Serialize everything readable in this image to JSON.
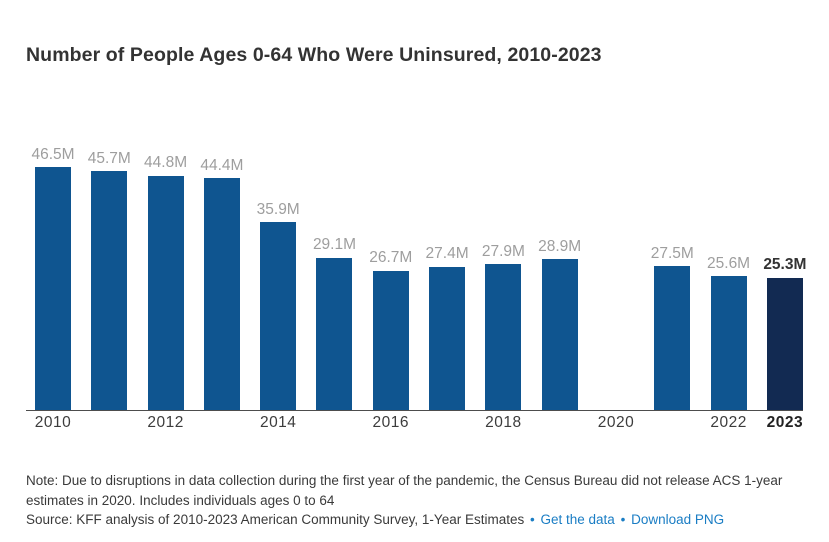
{
  "header": {
    "title": "Number of People Ages 0-64 Who Were Uninsured, 2010-2023"
  },
  "chart_data": {
    "type": "bar",
    "title": "Number of People Ages 0-64 Who Were Uninsured, 2010-2023",
    "xlabel": "",
    "ylabel": "",
    "unit": "millions of people",
    "x": [
      "2010",
      "2011",
      "2012",
      "2013",
      "2014",
      "2015",
      "2016",
      "2017",
      "2018",
      "2019",
      "2020",
      "2021",
      "2022",
      "2023"
    ],
    "values": [
      46.5,
      45.7,
      44.8,
      44.4,
      35.9,
      29.1,
      26.7,
      27.4,
      27.9,
      28.9,
      null,
      27.5,
      25.6,
      25.3
    ],
    "value_labels": [
      "46.5M",
      "45.7M",
      "44.8M",
      "44.4M",
      "35.9M",
      "29.1M",
      "26.7M",
      "27.4M",
      "27.9M",
      "28.9M",
      "",
      "27.5M",
      "25.6M",
      "25.3M"
    ],
    "missing_years": [
      "2020"
    ],
    "tick_labels": [
      "2010",
      "2012",
      "2014",
      "2016",
      "2018",
      "2020",
      "2022",
      "2023"
    ],
    "highlight_year": "2023",
    "ylim": [
      0,
      46.5
    ],
    "grid": false,
    "legend": "none",
    "colors": {
      "bar": "#0f5590",
      "bar_highlight": "#122a52",
      "value_label": "#9e9e9e",
      "value_label_highlight": "#333333",
      "axis_line": "#4d4d4d",
      "link_blue": "#1a7dc4"
    }
  },
  "footer": {
    "note": "Note: Due to disruptions in data collection during the first year of the pandemic, the Census Bureau did not release ACS 1-year estimates in 2020. Includes individuals ages 0 to 64",
    "source_prefix": "Source: KFF analysis of 2010-2023 American Community Survey, 1-Year Estimates",
    "separator": "•",
    "links": [
      {
        "label": "Get the data"
      },
      {
        "label": "Download PNG"
      }
    ]
  }
}
